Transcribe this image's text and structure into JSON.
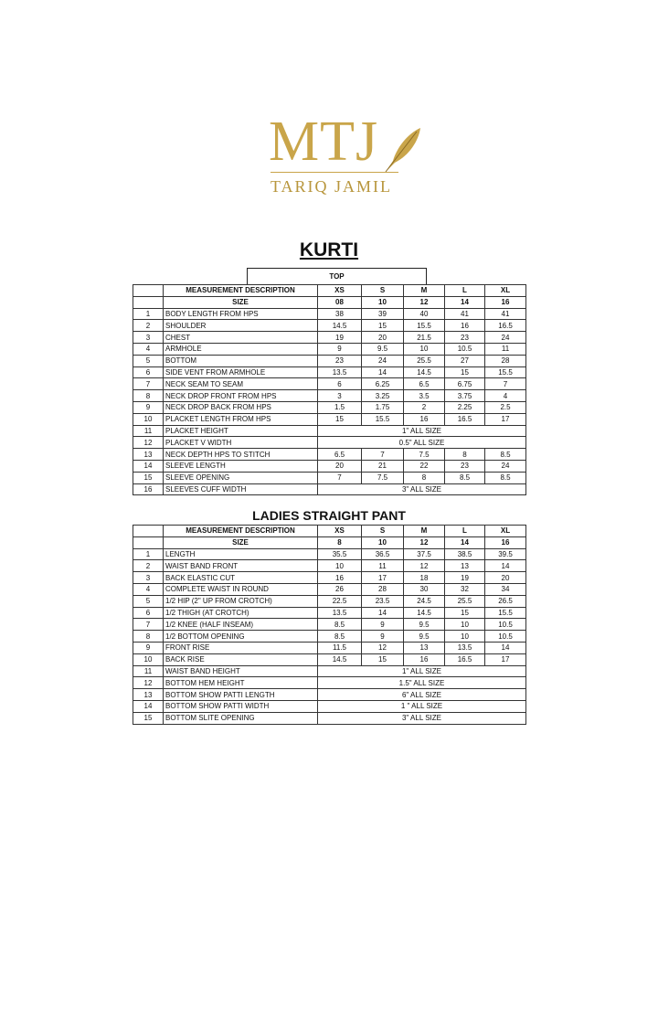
{
  "logo": {
    "monogram": "MTJ",
    "name": "TARIQ JAMIL",
    "color": "#c9a54a"
  },
  "kurti": {
    "title": "KURTI",
    "section": "TOP",
    "header": [
      "",
      "MEASUREMENT DESCRIPTION",
      "XS",
      "S",
      "M",
      "L",
      "XL"
    ],
    "size_row": [
      "",
      "SIZE",
      "08",
      "10",
      "12",
      "14",
      "16"
    ],
    "rows": [
      [
        "1",
        "BODY LENGTH FROM HPS",
        [
          "38",
          "39",
          "40",
          "41",
          "41"
        ]
      ],
      [
        "2",
        "SHOULDER",
        [
          "14.5",
          "15",
          "15.5",
          "16",
          "16.5"
        ]
      ],
      [
        "3",
        "CHEST",
        [
          "19",
          "20",
          "21.5",
          "23",
          "24"
        ]
      ],
      [
        "4",
        "ARMHOLE",
        [
          "9",
          "9.5",
          "10",
          "10.5",
          "11"
        ]
      ],
      [
        "5",
        "BOTTOM",
        [
          "23",
          "24",
          "25.5",
          "27",
          "28"
        ]
      ],
      [
        "6",
        "SIDE VENT FROM ARMHOLE",
        [
          "13.5",
          "14",
          "14.5",
          "15",
          "15.5"
        ]
      ],
      [
        "7",
        "NECK SEAM TO SEAM",
        [
          "6",
          "6.25",
          "6.5",
          "6.75",
          "7"
        ]
      ],
      [
        "8",
        "NECK DROP FRONT FROM HPS",
        [
          "3",
          "3.25",
          "3.5",
          "3.75",
          "4"
        ]
      ],
      [
        "9",
        "NECK DROP BACK FROM HPS",
        [
          "1.5",
          "1.75",
          "2",
          "2.25",
          "2.5"
        ]
      ],
      [
        "10",
        "PLACKET LENGTH FROM HPS",
        [
          "15",
          "15.5",
          "16",
          "16.5",
          "17"
        ]
      ],
      [
        "11",
        "PLACKET HEIGHT",
        "1\" ALL SIZE"
      ],
      [
        "12",
        "PLACKET V WIDTH",
        "0.5\" ALL SIZE"
      ],
      [
        "13",
        "NECK DEPTH HPS TO STITCH",
        [
          "6.5",
          "7",
          "7.5",
          "8",
          "8.5"
        ]
      ],
      [
        "14",
        "SLEEVE LENGTH",
        [
          "20",
          "21",
          "22",
          "23",
          "24"
        ]
      ],
      [
        "15",
        "SLEEVE OPENING",
        [
          "7",
          "7.5",
          "8",
          "8.5",
          "8.5"
        ]
      ],
      [
        "16",
        "SLEEVES CUFF WIDTH",
        "3\" ALL SIZE"
      ]
    ]
  },
  "pant": {
    "title": "LADIES STRAIGHT PANT",
    "header": [
      "",
      "MEASUREMENT DESCRIPTION",
      "XS",
      "S",
      "M",
      "L",
      "XL"
    ],
    "size_row": [
      "",
      "SIZE",
      "8",
      "10",
      "12",
      "14",
      "16"
    ],
    "rows": [
      [
        "1",
        "LENGTH",
        [
          "35.5",
          "36.5",
          "37.5",
          "38.5",
          "39.5"
        ]
      ],
      [
        "2",
        "WAIST BAND FRONT",
        [
          "10",
          "11",
          "12",
          "13",
          "14"
        ]
      ],
      [
        "3",
        "BACK ELASTIC CUT",
        [
          "16",
          "17",
          "18",
          "19",
          "20"
        ]
      ],
      [
        "4",
        "COMPLETE WAIST IN ROUND",
        [
          "26",
          "28",
          "30",
          "32",
          "34"
        ]
      ],
      [
        "5",
        "1/2 HIP (2\" UP FROM CROTCH)",
        [
          "22.5",
          "23.5",
          "24.5",
          "25.5",
          "26.5"
        ]
      ],
      [
        "6",
        "1/2 THIGH (AT CROTCH)",
        [
          "13.5",
          "14",
          "14.5",
          "15",
          "15.5"
        ]
      ],
      [
        "7",
        "1/2 KNEE (HALF INSEAM)",
        [
          "8.5",
          "9",
          "9.5",
          "10",
          "10.5"
        ]
      ],
      [
        "8",
        "1/2 BOTTOM OPENING",
        [
          "8.5",
          "9",
          "9.5",
          "10",
          "10.5"
        ]
      ],
      [
        "9",
        "FRONT RISE",
        [
          "11.5",
          "12",
          "13",
          "13.5",
          "14"
        ]
      ],
      [
        "10",
        "BACK RISE",
        [
          "14.5",
          "15",
          "16",
          "16.5",
          "17"
        ]
      ],
      [
        "11",
        "WAIST BAND HEIGHT",
        "1\" ALL SIZE"
      ],
      [
        "12",
        "BOTTOM HEM HEIGHT",
        "1.5\" ALL SIZE"
      ],
      [
        "13",
        "BOTTOM SHOW PATTI LENGTH",
        "6\" ALL SIZE"
      ],
      [
        "14",
        "BOTTOM SHOW PATTI WIDTH",
        "1 \" ALL SIZE"
      ],
      [
        "15",
        "BOTTOM SLITE OPENING",
        "3\" ALL SIZE"
      ]
    ]
  }
}
